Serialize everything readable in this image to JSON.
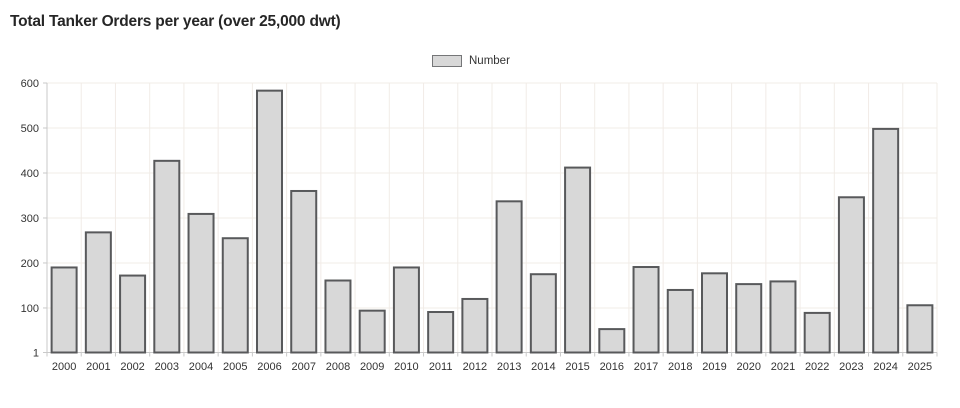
{
  "title": "Total Tanker Orders per year (over 25,000 dwt)",
  "legend": {
    "label": "Number"
  },
  "colors": {
    "bar_fill": "#d8d8d8",
    "bar_stroke": "#58595b",
    "grid": "#f1ece7",
    "axis": "#c9c9c9",
    "tick_text": "#333333",
    "title_text": "#262626",
    "background": "#ffffff"
  },
  "chart_data": {
    "type": "bar",
    "title": "Total Tanker Orders per year (over 25,000 dwt)",
    "categories": [
      "2000",
      "2001",
      "2002",
      "2003",
      "2004",
      "2005",
      "2006",
      "2007",
      "2008",
      "2009",
      "2010",
      "2011",
      "2012",
      "2013",
      "2014",
      "2015",
      "2016",
      "2017",
      "2018",
      "2019",
      "2020",
      "2021",
      "2022",
      "2023",
      "2024",
      "2025"
    ],
    "series": [
      {
        "name": "Number",
        "values": [
          190,
          268,
          172,
          427,
          309,
          255,
          583,
          360,
          161,
          94,
          190,
          91,
          120,
          337,
          175,
          412,
          53,
          191,
          140,
          177,
          153,
          159,
          89,
          346,
          498,
          106
        ]
      }
    ],
    "xlabel": "",
    "ylabel": "",
    "ylim": [
      1,
      600
    ],
    "yticks": [
      1,
      100,
      200,
      300,
      400,
      500,
      600
    ],
    "grid": true,
    "legend_position": "top-center"
  }
}
